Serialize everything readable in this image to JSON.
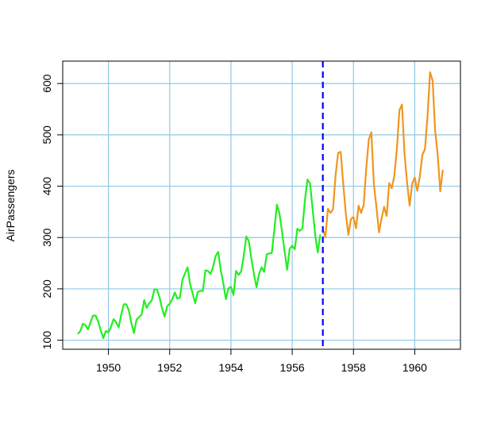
{
  "chart_data": {
    "type": "line",
    "title": "",
    "xlabel": "",
    "ylabel": "AirPassengers",
    "xlim": [
      1949,
      1961
    ],
    "ylim": [
      104,
      622
    ],
    "xticks": [
      1950,
      1952,
      1954,
      1956,
      1958,
      1960
    ],
    "yticks": [
      100,
      200,
      300,
      400,
      500,
      600
    ],
    "grid": true,
    "colors": {
      "train": "#22ee22",
      "test": "#f0961e",
      "split": "#0000ff",
      "grid": "#8ecae6",
      "axis": "#000000"
    },
    "split_x": 1957,
    "series": [
      {
        "start": 1949,
        "frequency": 12,
        "values": [
          112,
          118,
          132,
          129,
          121,
          135,
          148,
          148,
          136,
          119,
          104,
          118,
          115,
          126,
          141,
          135,
          125,
          149,
          170,
          170,
          158,
          133,
          114,
          140,
          145,
          150,
          178,
          163,
          172,
          178,
          199,
          199,
          184,
          162,
          146,
          166,
          171,
          180,
          193,
          181,
          183,
          218,
          230,
          242,
          209,
          191,
          172,
          194,
          196,
          196,
          236,
          235,
          229,
          243,
          264,
          272,
          237,
          211,
          180,
          201,
          204,
          188,
          235,
          227,
          234,
          264,
          302,
          293,
          259,
          229,
          203,
          229,
          242,
          233,
          267,
          269,
          270,
          315,
          364,
          347,
          312,
          274,
          237,
          278,
          284,
          277,
          317,
          313,
          318,
          374,
          413,
          405,
          355,
          306,
          271,
          306
        ]
      },
      {
        "start": 1957,
        "frequency": 12,
        "values": [
          315,
          301,
          356,
          348,
          355,
          422,
          465,
          467,
          404,
          347,
          305,
          336,
          340,
          318,
          362,
          348,
          363,
          435,
          491,
          505,
          404,
          359,
          310,
          337,
          360,
          342,
          406,
          396,
          420,
          472,
          548,
          559,
          463,
          407,
          362,
          405,
          417,
          391,
          419,
          461,
          472,
          535,
          622,
          606,
          508,
          461,
          390,
          432
        ]
      }
    ]
  }
}
